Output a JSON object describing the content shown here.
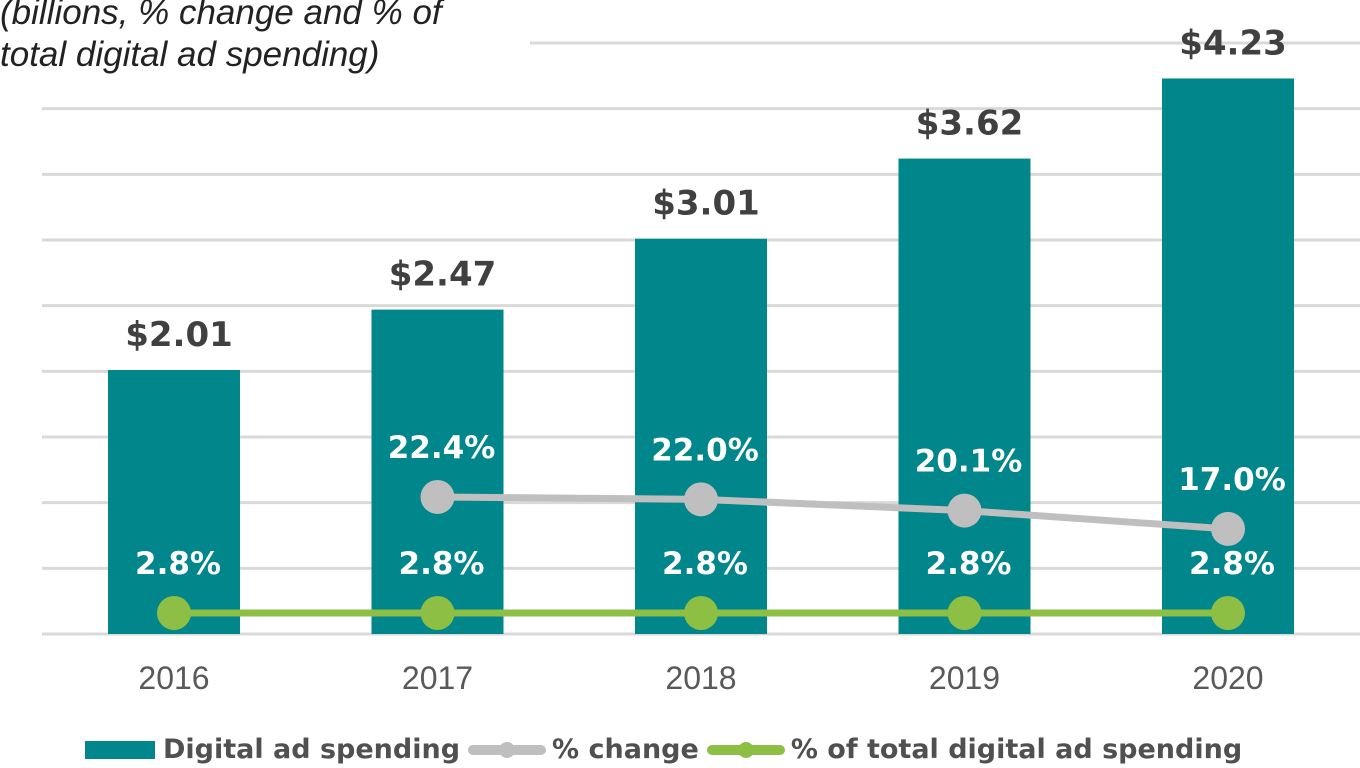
{
  "chart_data": {
    "type": "bar+line",
    "subtitle": "(billions, % change and % of\ntotal digital ad spending)",
    "categories": [
      "2016",
      "2017",
      "2018",
      "2019",
      "2020"
    ],
    "series": [
      {
        "name": "Digital ad spending",
        "type": "bar",
        "color": "#00868B",
        "values": [
          2.01,
          2.47,
          3.01,
          3.62,
          4.23
        ],
        "labels": [
          "$2.01",
          "$2.47",
          "$3.01",
          "$3.62",
          "$4.23"
        ]
      },
      {
        "name": "% change",
        "type": "line",
        "color": "#BFBFBF",
        "values": [
          null,
          22.4,
          22.0,
          20.1,
          17.0
        ],
        "labels": [
          "",
          "22.4%",
          "22.0%",
          "20.1%",
          "17.0%"
        ]
      },
      {
        "name": "% of total digital ad spending",
        "type": "line",
        "color": "#8DBF45",
        "values": [
          2.8,
          2.8,
          2.8,
          2.8,
          2.8
        ],
        "labels": [
          "2.8%",
          "2.8%",
          "2.8%",
          "2.8%",
          "2.8%"
        ]
      }
    ],
    "ylim": [
      0,
      4.5
    ],
    "grid": true,
    "legend_position": "bottom"
  }
}
